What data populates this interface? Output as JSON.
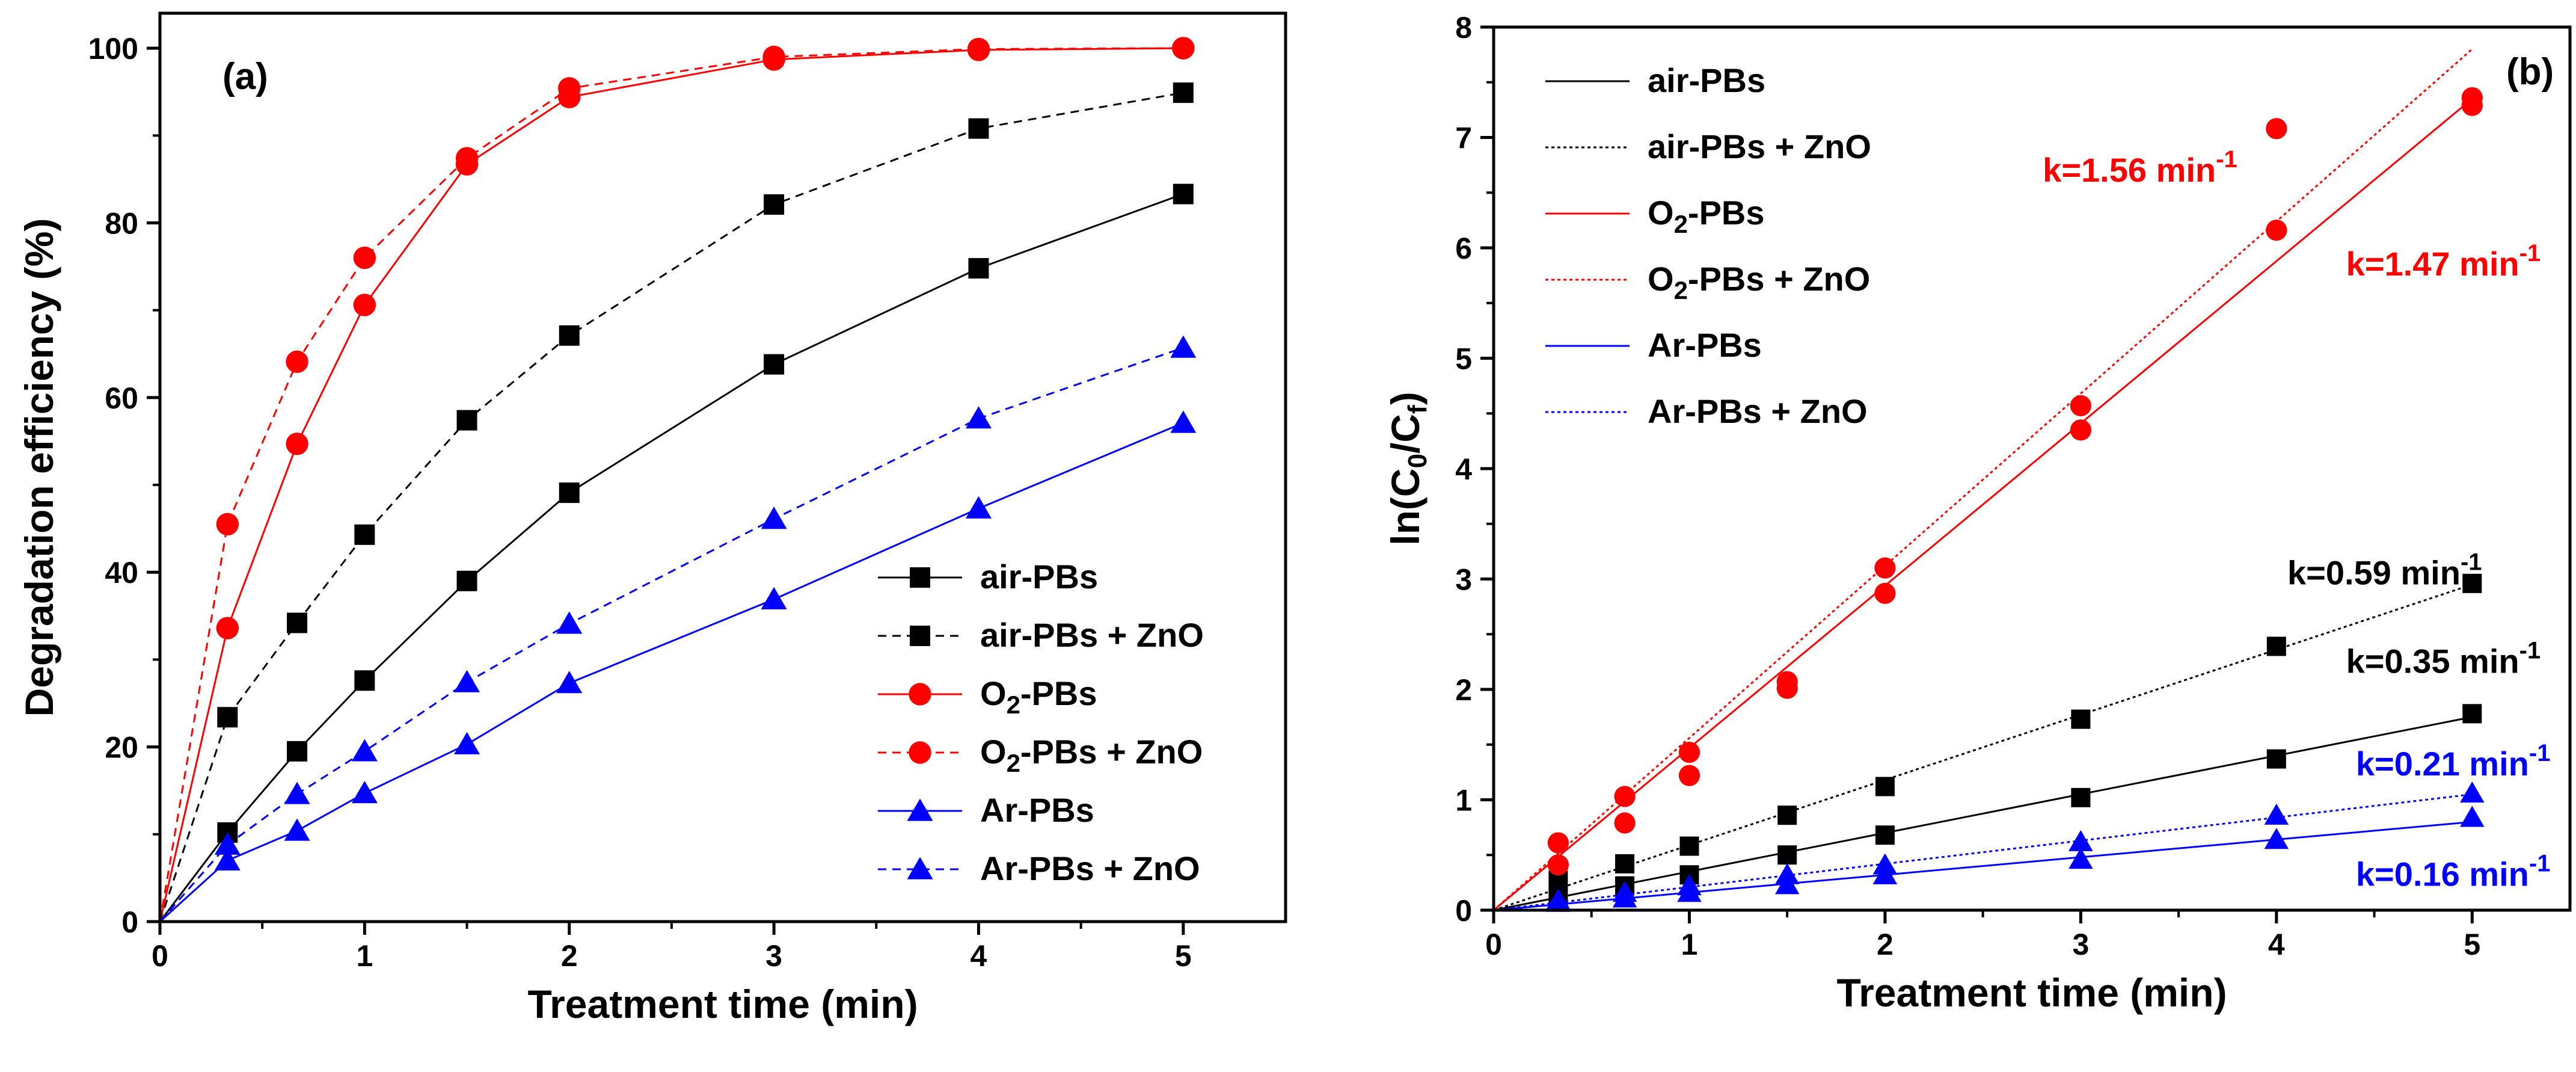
{
  "colors": {
    "black": "#000000",
    "red": "#ff0000",
    "blue": "#0000ff"
  },
  "chart_data": [
    {
      "type": "line",
      "panel_label": "(a)",
      "xlabel": "Treatment time (min)",
      "ylabel": "Degradation efficiency (%)",
      "xlim": [
        0,
        5.5
      ],
      "ylim": [
        0,
        104
      ],
      "xticks": [
        0,
        1,
        2,
        3,
        4,
        5
      ],
      "yticks": [
        0,
        20,
        40,
        60,
        80,
        100
      ],
      "x": [
        0,
        0.33,
        0.67,
        1,
        1.5,
        2,
        3,
        4,
        5
      ],
      "legend_position": "bottom-right",
      "series": [
        {
          "name": "air-PBs",
          "color": "#000000",
          "marker": "square",
          "dash": "solid",
          "values": [
            0,
            10.2,
            19.5,
            27.6,
            39,
            49.1,
            63.8,
            74.8,
            83.3
          ]
        },
        {
          "name": "air-PBs + ZnO",
          "color": "#000000",
          "marker": "square",
          "dash": "dashed",
          "values": [
            0,
            23.4,
            34.2,
            44.3,
            57.4,
            67.1,
            82.1,
            90.8,
            94.9
          ]
        },
        {
          "name": "O2-PBs",
          "color": "#ff0000",
          "marker": "circle",
          "dash": "solid",
          "values": [
            0,
            33.6,
            54.7,
            70.6,
            86.7,
            94.4,
            98.7,
            99.8,
            100
          ]
        },
        {
          "name": "O2-PBs + ZnO",
          "color": "#ff0000",
          "marker": "circle",
          "dash": "dashed",
          "values": [
            0,
            45.5,
            64.1,
            76,
            87.4,
            95.4,
            99,
            99.9,
            100
          ]
        },
        {
          "name": "Ar-PBs",
          "color": "#0000ff",
          "marker": "triangle",
          "dash": "solid",
          "values": [
            0,
            7,
            10.4,
            14.7,
            20.3,
            27.3,
            36.9,
            47.3,
            57.1
          ]
        },
        {
          "name": "Ar-PBs + ZnO",
          "color": "#0000ff",
          "marker": "triangle",
          "dash": "dashed",
          "values": [
            0,
            8.8,
            14.6,
            19.5,
            27.4,
            34.1,
            46.1,
            57.6,
            65.7
          ]
        }
      ]
    },
    {
      "type": "scatter",
      "panel_label": "(b)",
      "xlabel": "Treatment time (min)",
      "ylabel_main": "ln(C",
      "ylabel_sub0": "0",
      "ylabel_mid": "/C",
      "ylabel_sub1": "f",
      "ylabel_end": ")",
      "xlim": [
        0,
        5.5
      ],
      "ylim": [
        0,
        8
      ],
      "xticks": [
        0,
        1,
        2,
        3,
        4,
        5
      ],
      "yticks": [
        0,
        1,
        2,
        3,
        4,
        5,
        6,
        7,
        8
      ],
      "x": [
        0,
        0.33,
        0.67,
        1,
        1.5,
        2,
        3,
        4,
        5
      ],
      "legend_position": "top-left",
      "series": [
        {
          "name": "air-PBs",
          "color": "#000000",
          "marker": "square",
          "dash": "solid",
          "slope": 0.35,
          "values": [
            0,
            0.11,
            0.22,
            0.32,
            0.5,
            0.68,
            1.02,
            1.37,
            1.78
          ]
        },
        {
          "name": "air-PBs + ZnO",
          "color": "#000000",
          "marker": "square",
          "dash": "dotted",
          "slope": 0.59,
          "values": [
            0,
            0.27,
            0.42,
            0.58,
            0.86,
            1.12,
            1.73,
            2.39,
            2.96
          ]
        },
        {
          "name": "O2-PBs",
          "color": "#ff0000",
          "marker": "circle",
          "dash": "solid",
          "slope": 1.47,
          "values": [
            0,
            0.41,
            0.79,
            1.22,
            2.01,
            2.87,
            4.35,
            6.16,
            7.29
          ]
        },
        {
          "name": "O2-PBs + ZnO",
          "color": "#ff0000",
          "marker": "circle",
          "dash": "dotted",
          "slope": 1.56,
          "values": [
            0,
            0.61,
            1.03,
            1.43,
            2.07,
            3.1,
            4.57,
            7.08,
            7.36
          ]
        },
        {
          "name": "Ar-PBs",
          "color": "#0000ff",
          "marker": "triangle",
          "dash": "solid",
          "slope": 0.16,
          "values": [
            0,
            0.07,
            0.11,
            0.16,
            0.23,
            0.32,
            0.46,
            0.64,
            0.84
          ]
        },
        {
          "name": "Ar-PBs + ZnO",
          "color": "#0000ff",
          "marker": "triangle",
          "dash": "dotted",
          "slope": 0.21,
          "values": [
            0,
            0.09,
            0.16,
            0.22,
            0.32,
            0.41,
            0.62,
            0.86,
            1.06
          ]
        }
      ],
      "annotations": [
        {
          "text": "k=1.56 min",
          "sup": "-1",
          "color": "#ff0000",
          "x": 3.8,
          "y": 6.6,
          "anchor": "end"
        },
        {
          "text": "k=1.47 min",
          "sup": "-1",
          "color": "#ff0000",
          "x": 5.35,
          "y": 5.75,
          "anchor": "end"
        },
        {
          "text": "k=0.59 min",
          "sup": "-1",
          "color": "#000000",
          "x": 5.05,
          "y": 2.95,
          "anchor": "end"
        },
        {
          "text": "k=0.35 min",
          "sup": "-1",
          "color": "#000000",
          "x": 5.35,
          "y": 2.15,
          "anchor": "end"
        },
        {
          "text": "k=0.21 min",
          "sup": "-1",
          "color": "#0000ff",
          "x": 5.4,
          "y": 1.22,
          "anchor": "end"
        },
        {
          "text": "k=0.16 min",
          "sup": "-1",
          "color": "#0000ff",
          "x": 5.4,
          "y": 0.22,
          "anchor": "end"
        }
      ]
    }
  ]
}
